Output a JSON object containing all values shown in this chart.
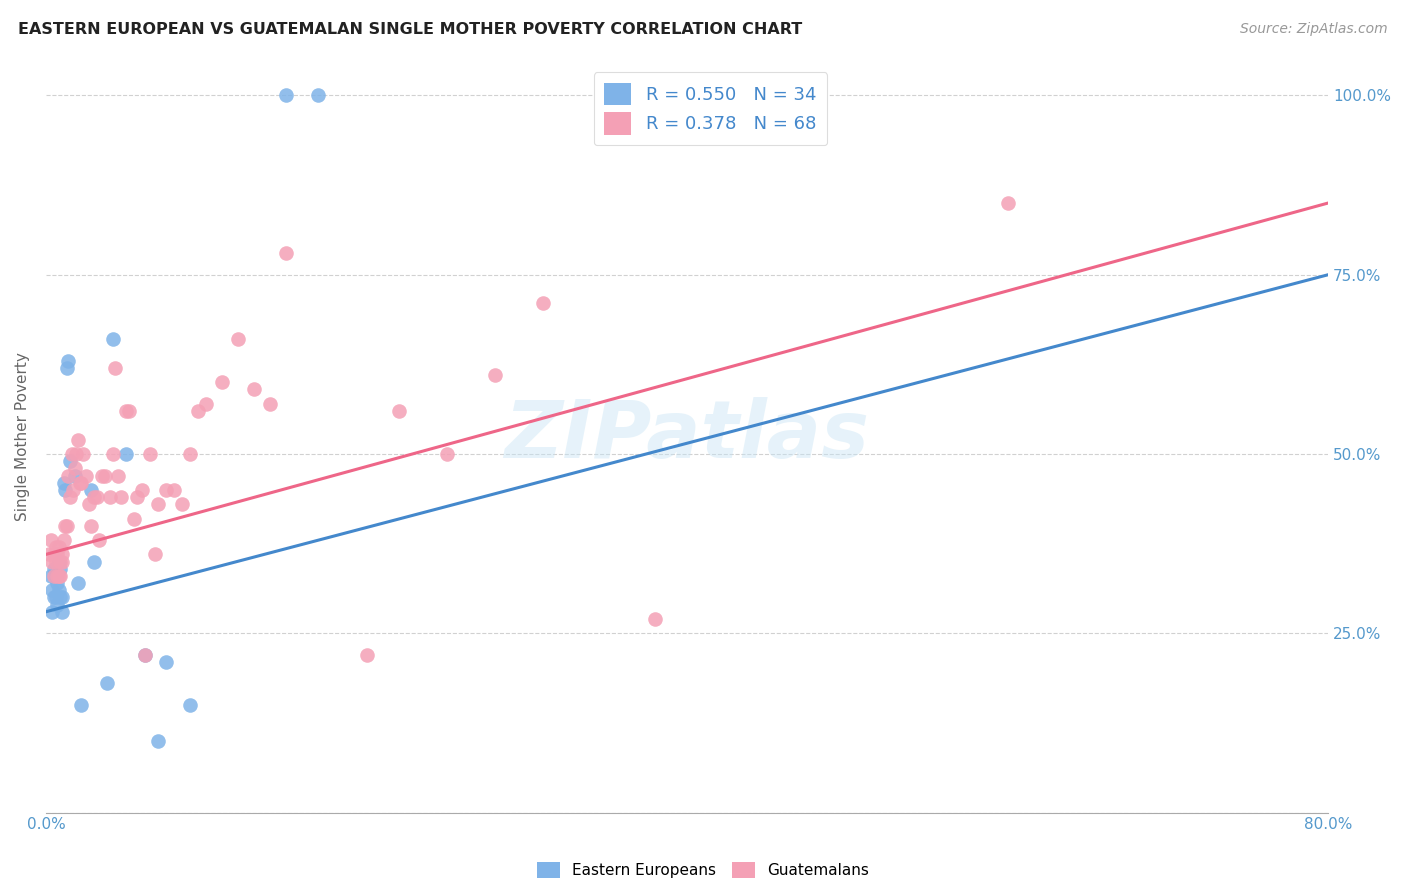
{
  "title": "EASTERN EUROPEAN VS GUATEMALAN SINGLE MOTHER POVERTY CORRELATION CHART",
  "source": "Source: ZipAtlas.com",
  "ylabel": "Single Mother Poverty",
  "x_tick_positions": [
    0.0,
    0.1,
    0.2,
    0.3,
    0.4,
    0.5,
    0.6,
    0.7,
    0.8
  ],
  "x_tick_labels": [
    "0.0%",
    "",
    "",
    "",
    "",
    "",
    "",
    "",
    "80.0%"
  ],
  "y_tick_positions": [
    0.0,
    0.25,
    0.5,
    0.75,
    1.0
  ],
  "y_tick_labels_right": [
    "",
    "25.0%",
    "50.0%",
    "75.0%",
    "100.0%"
  ],
  "xlim": [
    0.0,
    0.8
  ],
  "ylim": [
    0.0,
    1.05
  ],
  "R_eastern": 0.55,
  "N_eastern": 34,
  "R_guatemalan": 0.378,
  "N_guatemalan": 68,
  "eastern_color": "#7fb3e8",
  "guatemalan_color": "#f4a0b5",
  "trendline_eastern_color": "#4488cc",
  "trendline_guatemalan_color": "#ee6688",
  "background_color": "#ffffff",
  "watermark": "ZIPatlas",
  "legend_eastern": "Eastern Europeans",
  "legend_guatemalan": "Guatemalans",
  "eastern_x": [
    0.003,
    0.004,
    0.004,
    0.005,
    0.005,
    0.006,
    0.006,
    0.007,
    0.007,
    0.008,
    0.008,
    0.009,
    0.009,
    0.01,
    0.01,
    0.011,
    0.012,
    0.013,
    0.014,
    0.015,
    0.018,
    0.02,
    0.022,
    0.028,
    0.03,
    0.038,
    0.042,
    0.05,
    0.062,
    0.07,
    0.075,
    0.09,
    0.15,
    0.17
  ],
  "eastern_y": [
    0.33,
    0.31,
    0.28,
    0.34,
    0.3,
    0.3,
    0.33,
    0.32,
    0.29,
    0.35,
    0.31,
    0.3,
    0.34,
    0.3,
    0.28,
    0.46,
    0.45,
    0.62,
    0.63,
    0.49,
    0.47,
    0.32,
    0.15,
    0.45,
    0.35,
    0.18,
    0.66,
    0.5,
    0.22,
    0.1,
    0.21,
    0.15,
    1.0,
    1.0
  ],
  "guatemalan_x": [
    0.002,
    0.003,
    0.004,
    0.005,
    0.005,
    0.006,
    0.006,
    0.007,
    0.007,
    0.008,
    0.008,
    0.009,
    0.009,
    0.01,
    0.01,
    0.011,
    0.012,
    0.013,
    0.014,
    0.015,
    0.016,
    0.017,
    0.018,
    0.019,
    0.02,
    0.021,
    0.022,
    0.023,
    0.025,
    0.027,
    0.028,
    0.03,
    0.032,
    0.033,
    0.035,
    0.037,
    0.04,
    0.042,
    0.043,
    0.045,
    0.047,
    0.05,
    0.052,
    0.055,
    0.057,
    0.06,
    0.062,
    0.065,
    0.068,
    0.07,
    0.075,
    0.08,
    0.085,
    0.09,
    0.095,
    0.1,
    0.11,
    0.12,
    0.13,
    0.14,
    0.15,
    0.2,
    0.22,
    0.25,
    0.28,
    0.31,
    0.38,
    0.6
  ],
  "guatemalan_y": [
    0.36,
    0.38,
    0.35,
    0.33,
    0.36,
    0.37,
    0.35,
    0.36,
    0.33,
    0.33,
    0.37,
    0.35,
    0.33,
    0.36,
    0.35,
    0.38,
    0.4,
    0.4,
    0.47,
    0.44,
    0.5,
    0.45,
    0.48,
    0.5,
    0.52,
    0.46,
    0.46,
    0.5,
    0.47,
    0.43,
    0.4,
    0.44,
    0.44,
    0.38,
    0.47,
    0.47,
    0.44,
    0.5,
    0.62,
    0.47,
    0.44,
    0.56,
    0.56,
    0.41,
    0.44,
    0.45,
    0.22,
    0.5,
    0.36,
    0.43,
    0.45,
    0.45,
    0.43,
    0.5,
    0.56,
    0.57,
    0.6,
    0.66,
    0.59,
    0.57,
    0.78,
    0.22,
    0.56,
    0.5,
    0.61,
    0.71,
    0.27,
    0.85
  ],
  "trendline_eastern_x0": 0.0,
  "trendline_eastern_y0": 0.28,
  "trendline_eastern_x1": 0.8,
  "trendline_eastern_y1": 0.75,
  "trendline_guatemalan_x0": 0.0,
  "trendline_guatemalan_y0": 0.36,
  "trendline_guatemalan_x1": 0.8,
  "trendline_guatemalan_y1": 0.85
}
